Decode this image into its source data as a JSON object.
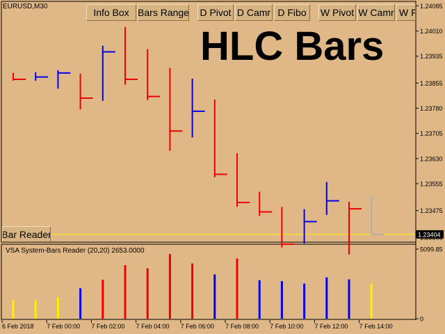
{
  "window": {
    "symbol_timeframe": "EURUSD,M30"
  },
  "title_overlay": "HLC Bars",
  "toolbar": {
    "buttons": [
      {
        "label": "Info Box"
      },
      {
        "label": "Bars Range"
      },
      {
        "label": "D Pivot"
      },
      {
        "label": "D Camr"
      },
      {
        "label": "D Fibo"
      },
      {
        "label": "W Pivot"
      },
      {
        "label": "W Camr"
      },
      {
        "label": "W F"
      }
    ]
  },
  "bar_reader_button": {
    "label": "Bar Reader"
  },
  "indicator": {
    "label": "VSA System-Bars Reader (20,20) 2653.0000"
  },
  "colors": {
    "background": "#e0b887",
    "bull": "#0000ee",
    "bear": "#ee0000",
    "neutral": "#b0b0b0",
    "volume_low": "#ffee00",
    "current_price_line": "#ffee00",
    "price_tag_bg": "#000000",
    "price_tag_fg": "#ffffff"
  },
  "chart_data": [
    {
      "type": "hlc",
      "y_tick_labels": [
        "1.24085",
        "1.24010",
        "1.23935",
        "1.23855",
        "1.23780",
        "1.23705",
        "1.23630",
        "1.23555",
        "1.23475",
        "1.23395"
      ],
      "ylim": [
        1.23385,
        1.24092
      ],
      "x_tick_labels": [
        "6 Feb 2018",
        "7 Feb 00:00",
        "7 Feb 02:00",
        "7 Feb 04:00",
        "7 Feb 06:00",
        "7 Feb 08:00",
        "7 Feb 10:00",
        "7 Feb 12:00",
        "7 Feb 14:00"
      ],
      "current_price": 1.23404,
      "current_price_label": "1.23404",
      "bars": [
        {
          "high": 1.23885,
          "low": 1.23862,
          "close": 1.23866,
          "color": "bear"
        },
        {
          "high": 1.23887,
          "low": 1.23862,
          "close": 1.23873,
          "color": "bull"
        },
        {
          "high": 1.23893,
          "low": 1.23838,
          "close": 1.23885,
          "color": "bull"
        },
        {
          "high": 1.23883,
          "low": 1.23776,
          "close": 1.2381,
          "color": "bear"
        },
        {
          "high": 1.23966,
          "low": 1.23802,
          "close": 1.23948,
          "color": "bull"
        },
        {
          "high": 1.24022,
          "low": 1.2385,
          "close": 1.23866,
          "color": "bear"
        },
        {
          "high": 1.23956,
          "low": 1.23804,
          "close": 1.23815,
          "color": "bear"
        },
        {
          "high": 1.239,
          "low": 1.23653,
          "close": 1.23712,
          "color": "bear"
        },
        {
          "high": 1.23868,
          "low": 1.23693,
          "close": 1.23771,
          "color": "bull"
        },
        {
          "high": 1.23806,
          "low": 1.23574,
          "close": 1.23583,
          "color": "bear"
        },
        {
          "high": 1.23646,
          "low": 1.23486,
          "close": 1.23499,
          "color": "bear"
        },
        {
          "high": 1.23531,
          "low": 1.23459,
          "close": 1.23471,
          "color": "bear"
        },
        {
          "high": 1.23486,
          "low": 1.23365,
          "close": 1.23375,
          "color": "bear"
        },
        {
          "high": 1.23479,
          "low": 1.23377,
          "close": 1.23442,
          "color": "bull"
        },
        {
          "high": 1.2356,
          "low": 1.23462,
          "close": 1.23504,
          "color": "bull"
        },
        {
          "high": 1.23501,
          "low": 1.23344,
          "close": 1.2348,
          "color": "bear"
        },
        {
          "high": 1.23519,
          "low": 1.23402,
          "close": 1.23404,
          "color": "neutral"
        }
      ]
    },
    {
      "type": "bar",
      "title": "VSA System-Bars Reader (20,20) 2653.0000",
      "y_tick_labels": [
        "5099.85",
        "0"
      ],
      "ylim": [
        0,
        5099.85
      ],
      "values": [
        1380,
        1330,
        1560,
        2230,
        2860,
        3920,
        3690,
        4740,
        4050,
        3250,
        4410,
        2820,
        2750,
        2570,
        3030,
        2880,
        2590
      ],
      "colors": [
        "volume_low",
        "volume_low",
        "volume_low",
        "bull",
        "bear",
        "bear",
        "bear",
        "bear",
        "bear",
        "bull",
        "bear",
        "bull",
        "bull",
        "bull",
        "bull",
        "bull",
        "volume_low"
      ]
    }
  ]
}
